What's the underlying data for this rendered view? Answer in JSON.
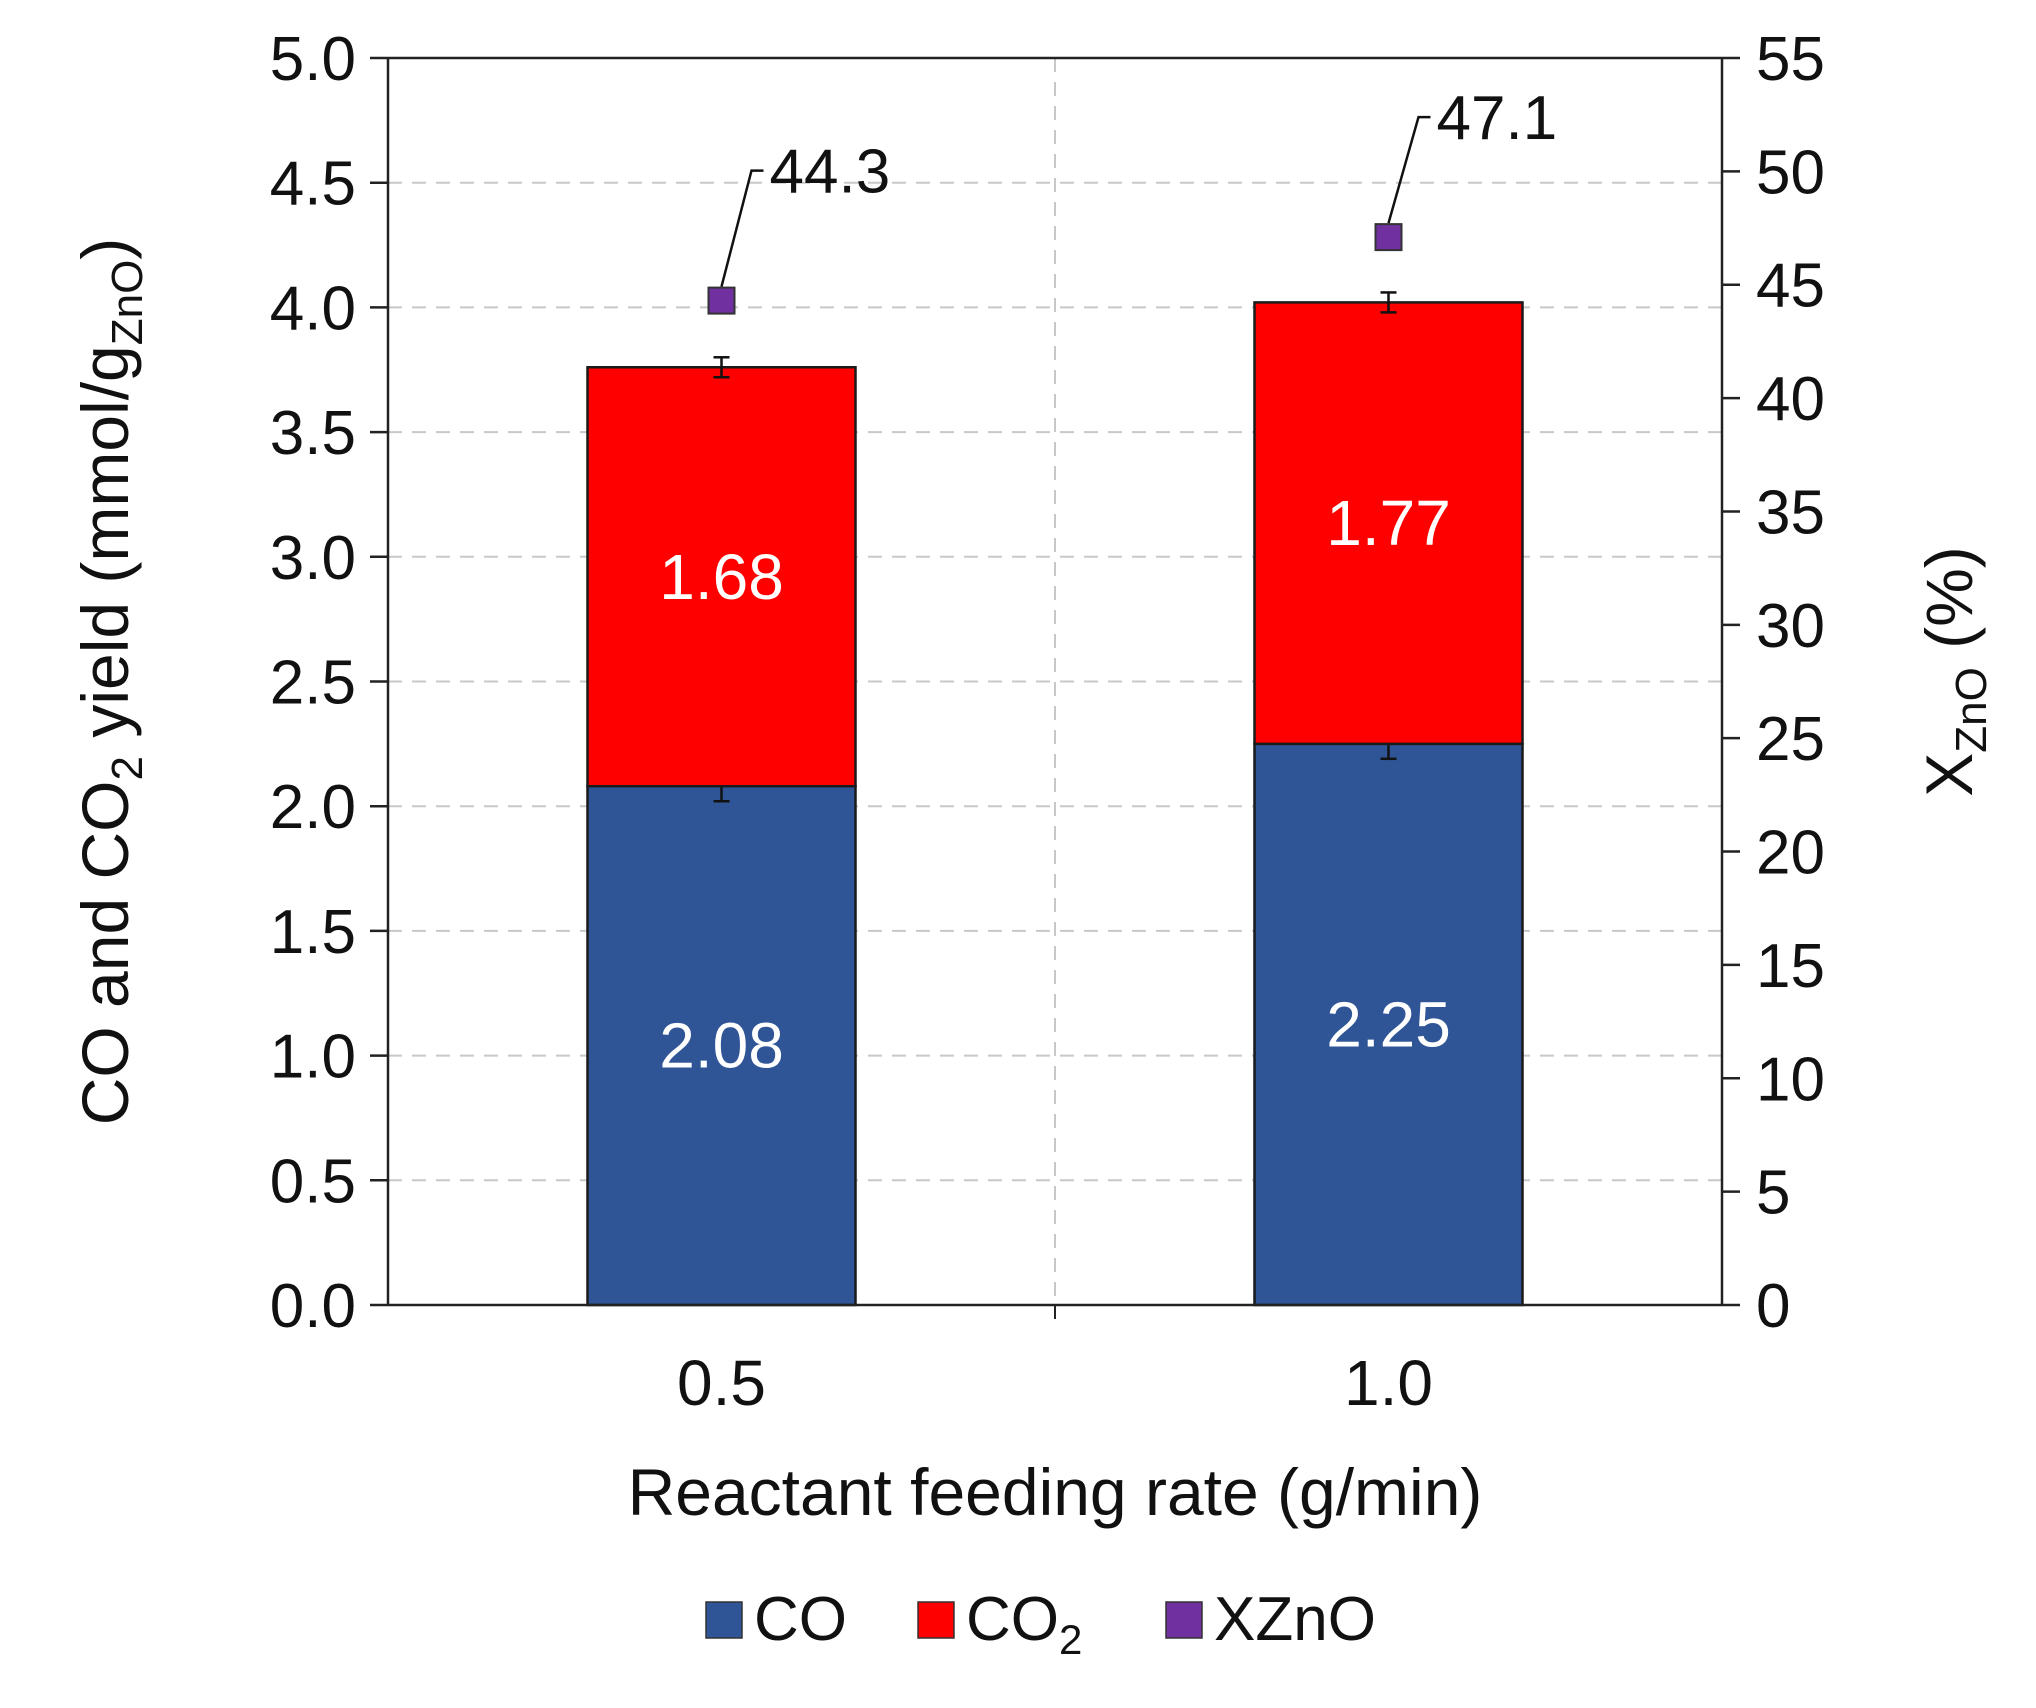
{
  "chart_data": {
    "type": "bar",
    "stacked": true,
    "categories": [
      "0.5",
      "1.0"
    ],
    "series": [
      {
        "name": "CO",
        "values": [
          2.08,
          2.25
        ],
        "color": "#2f5597",
        "value_labels": [
          "2.08",
          "2.25"
        ],
        "error": [
          0.06,
          0.06
        ]
      },
      {
        "name": "CO2",
        "values": [
          1.68,
          1.77
        ],
        "color": "#ff0000",
        "value_labels": [
          "1.68",
          "1.77"
        ],
        "error": [
          0.04,
          0.04
        ]
      }
    ],
    "secondary_series": {
      "name": "XZnO",
      "values": [
        44.3,
        47.1
      ],
      "labels": [
        "44.3",
        "47.1"
      ],
      "color": "#7030a0"
    },
    "xlabel": "Reactant feeding rate (g/min)",
    "ylabel": {
      "prefix": "CO and CO",
      "sub1": "2",
      "middle": " yield (mmol/g",
      "sub2": "ZnO",
      "suffix": ")"
    },
    "y2label": {
      "main": "X",
      "sub": "ZnO",
      "suffix": " (%)"
    },
    "ylim": [
      0,
      5
    ],
    "y_ticks": [
      "0.0",
      "0.5",
      "1.0",
      "1.5",
      "2.0",
      "2.5",
      "3.0",
      "3.5",
      "4.0",
      "4.5",
      "5.0"
    ],
    "y2lim": [
      0,
      55
    ],
    "y2_ticks": [
      "0",
      "5",
      "10",
      "15",
      "20",
      "25",
      "30",
      "35",
      "40",
      "45",
      "50",
      "55"
    ],
    "grid": true,
    "legend": {
      "placement": "bottom",
      "items": [
        {
          "label": "CO",
          "color": "#2f5597"
        },
        {
          "label": "CO",
          "sub": "2",
          "color": "#ff0000"
        },
        {
          "label": "XZnO",
          "color": "#7030a0"
        }
      ]
    }
  }
}
